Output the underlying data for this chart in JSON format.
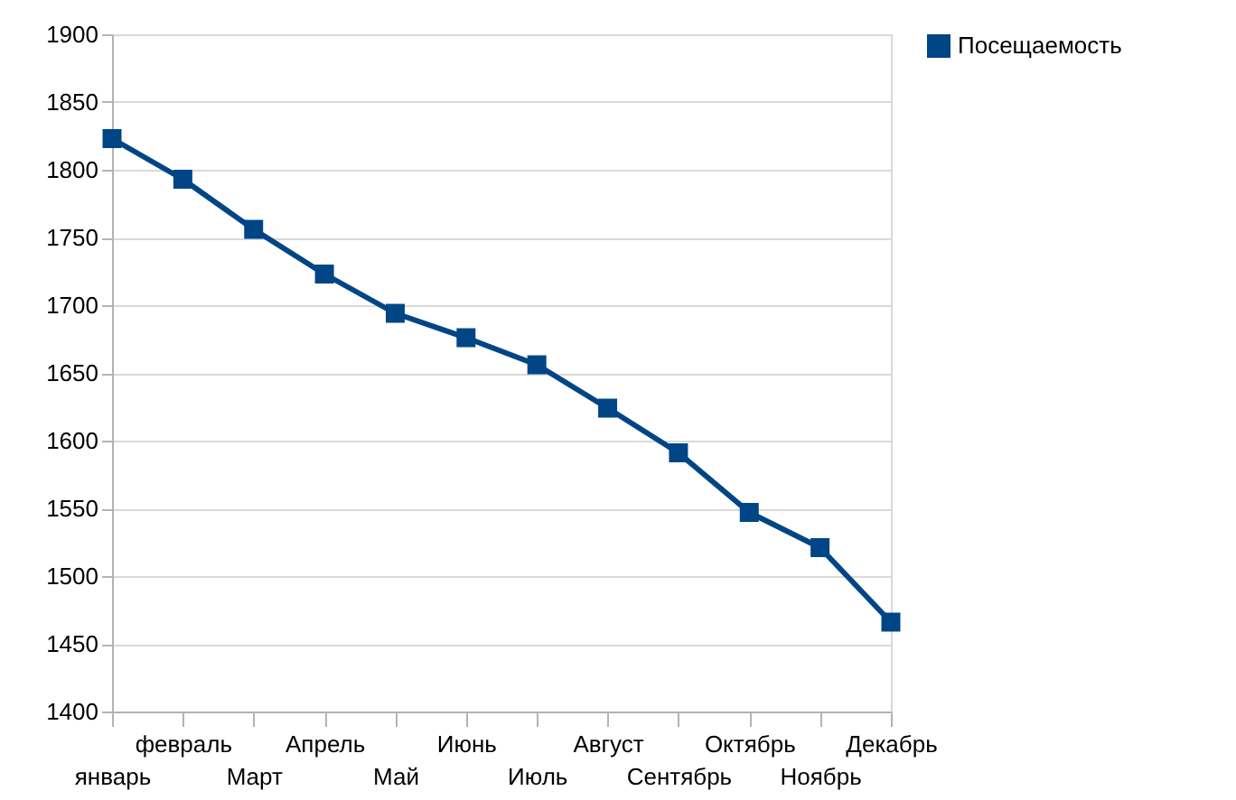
{
  "chart_data": {
    "type": "line",
    "categories": [
      "январь",
      "февраль",
      "Март",
      "Апрель",
      "Май",
      "Июнь",
      "Июль",
      "Август",
      "Сентябрь",
      "Октябрь",
      "Ноябрь",
      "Декабрь"
    ],
    "series": [
      {
        "name": "Посещаемость",
        "color": "#004586",
        "values": [
          1823,
          1793,
          1756,
          1723,
          1694,
          1676,
          1656,
          1624,
          1591,
          1547,
          1521,
          1466
        ]
      }
    ],
    "ylim": [
      1400,
      1900
    ],
    "yticks": [
      1400,
      1450,
      1500,
      1550,
      1600,
      1650,
      1700,
      1750,
      1800,
      1850,
      1900
    ],
    "grid": "y",
    "legend": "right",
    "marker": "square",
    "line_style": "solid"
  }
}
